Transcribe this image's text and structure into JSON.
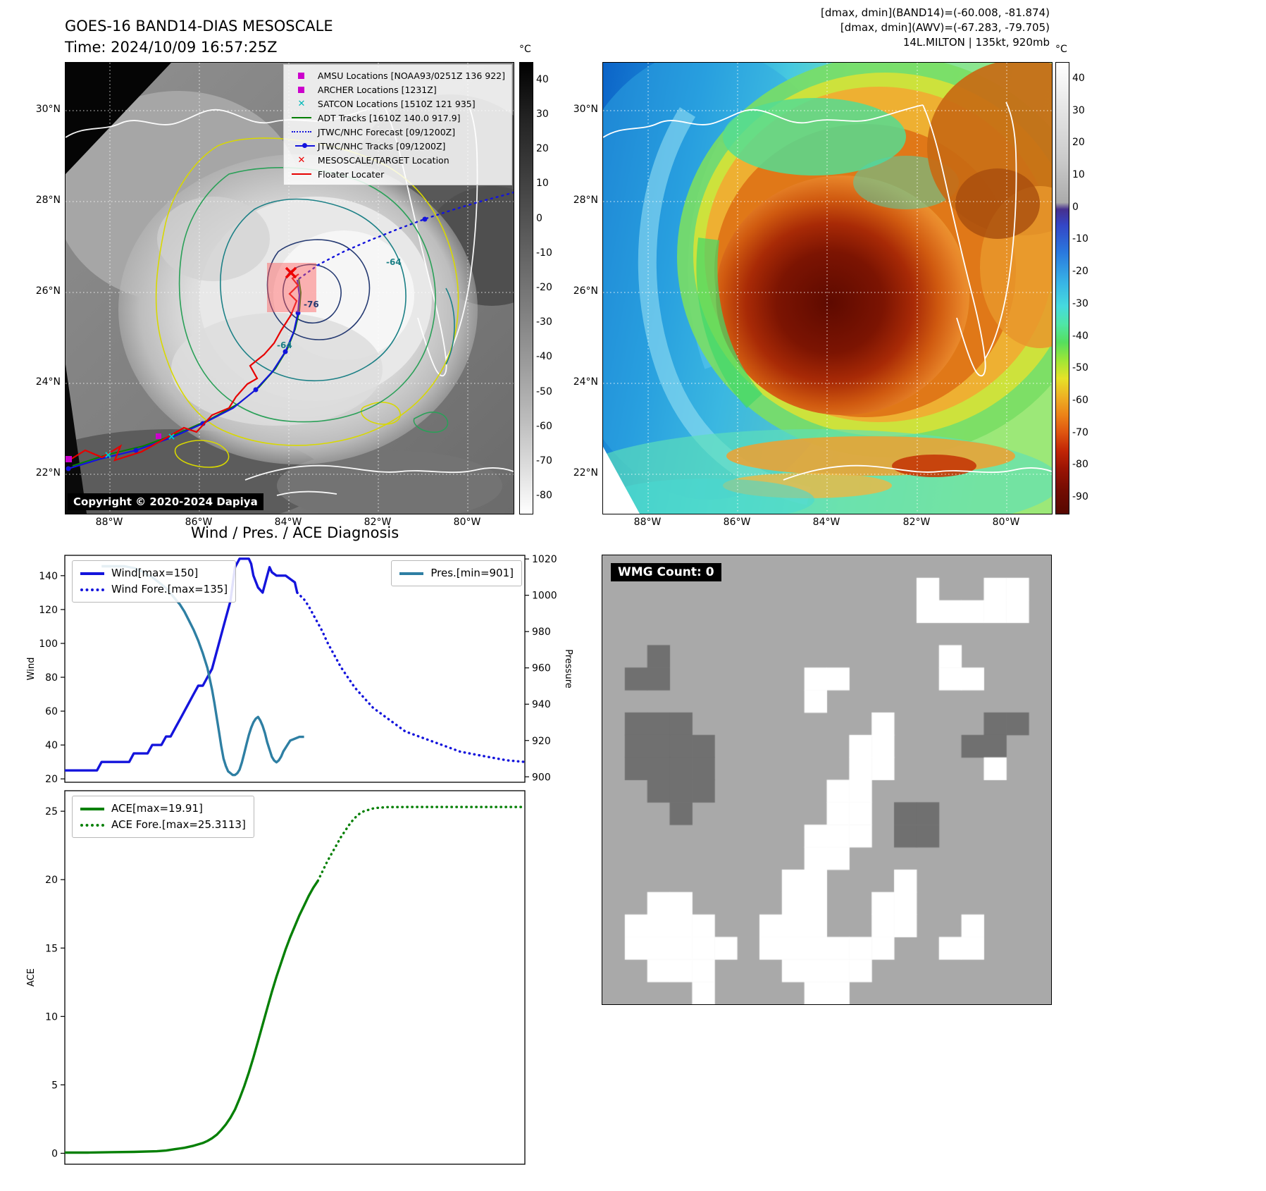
{
  "panel_band14": {
    "title_line1": "GOES-16 BAND14-DIAS MESOSCALE",
    "title_line2": "Time: 2024/10/09 16:57:25Z",
    "copyright": "Copyright © 2020-2024 Dapiya",
    "colorbar": {
      "unit": "°C",
      "ticks": [
        40,
        30,
        20,
        10,
        0,
        -10,
        -20,
        -30,
        -40,
        -50,
        -60,
        -70,
        -80
      ]
    },
    "lat_labels": [
      "30°N",
      "28°N",
      "26°N",
      "24°N",
      "22°N"
    ],
    "lon_labels": [
      "88°W",
      "86°W",
      "84°W",
      "82°W",
      "80°W"
    ],
    "contour_labels": [
      "-64",
      "-76",
      "-64"
    ],
    "legend": [
      {
        "label": "AMSU Locations [NOAA93/0251Z 136 922]",
        "marker": "square",
        "color": "#cc00cc"
      },
      {
        "label": "ARCHER Locations [1231Z]",
        "marker": "square",
        "color": "#cc00cc"
      },
      {
        "label": "SATCON Locations [1510Z 121 935]",
        "marker": "x",
        "color": "#00b8b8"
      },
      {
        "label": "ADT Tracks [1610Z 140.0 917.9]",
        "marker": "line",
        "color": "#068006"
      },
      {
        "label": "JTWC/NHC Forecast [09/1200Z]",
        "marker": "dotted",
        "color": "#1414dc"
      },
      {
        "label": "JTWC/NHC Tracks [09/1200Z]",
        "marker": "line-dot",
        "color": "#1414dc"
      },
      {
        "label": "MESOSCALE/TARGET Location",
        "marker": "x",
        "color": "#ee0000"
      },
      {
        "label": "Floater Locater",
        "marker": "line",
        "color": "#e60000"
      }
    ]
  },
  "panel_awv": {
    "annotations": [
      "[dmax, dmin](BAND14)=(-60.008, -81.874)",
      "[dmax, dmin](AWV)=(-67.283, -79.705)",
      "14L.MILTON | 135kt, 920mb"
    ],
    "colorbar": {
      "unit": "°C",
      "ticks": [
        40,
        30,
        20,
        10,
        0,
        -10,
        -20,
        -30,
        -40,
        -50,
        -60,
        -70,
        -80,
        -90
      ]
    },
    "lat_labels": [
      "30°N",
      "28°N",
      "26°N",
      "24°N",
      "22°N"
    ],
    "lon_labels": [
      "88°W",
      "86°W",
      "84°W",
      "82°W",
      "80°W"
    ]
  },
  "chart_data": [
    {
      "type": "line",
      "id": "wind_pres",
      "title": "Wind / Pres. / ACE Diagnosis",
      "ylabel": "Wind",
      "ylabel_right": "Pressure",
      "y_ticks": [
        20,
        40,
        60,
        80,
        100,
        120,
        140
      ],
      "y_range": [
        18,
        152
      ],
      "y_right_ticks": [
        900,
        920,
        940,
        960,
        980,
        1000,
        1020
      ],
      "y_right_range": [
        897,
        1022
      ],
      "x_range": [
        0,
        100
      ],
      "grid": false,
      "legend_left": [
        {
          "label": "Wind[max=150]",
          "style": "solid",
          "color": "#1414dc"
        },
        {
          "label": "Wind Fore.[max=135]",
          "style": "dotted",
          "color": "#1414dc"
        }
      ],
      "legend_right": [
        {
          "label": "Pres.[min=901]",
          "style": "solid",
          "color": "#2e7fa3"
        }
      ],
      "series": [
        {
          "name": "Wind",
          "axis": "left",
          "style": "solid",
          "color": "#1414dc",
          "points": [
            [
              0,
              25
            ],
            [
              3,
              25
            ],
            [
              5,
              25
            ],
            [
              7,
              25
            ],
            [
              8,
              30
            ],
            [
              10,
              30
            ],
            [
              12,
              30
            ],
            [
              14,
              30
            ],
            [
              15,
              35
            ],
            [
              17,
              35
            ],
            [
              18,
              35
            ],
            [
              19,
              40
            ],
            [
              21,
              40
            ],
            [
              22,
              45
            ],
            [
              23,
              45
            ],
            [
              24,
              50
            ],
            [
              25,
              55
            ],
            [
              26,
              60
            ],
            [
              27,
              65
            ],
            [
              28,
              70
            ],
            [
              29,
              75
            ],
            [
              30,
              75
            ],
            [
              31,
              80
            ],
            [
              32,
              85
            ],
            [
              33,
              95
            ],
            [
              34,
              105
            ],
            [
              35,
              115
            ],
            [
              36,
              125
            ],
            [
              36.5,
              135
            ],
            [
              37,
              145
            ],
            [
              38,
              150
            ],
            [
              39,
              150
            ],
            [
              40,
              150
            ],
            [
              40.5,
              147
            ],
            [
              41,
              140
            ],
            [
              42,
              133
            ],
            [
              43,
              130
            ],
            [
              44,
              140
            ],
            [
              44.5,
              145
            ],
            [
              45,
              142
            ],
            [
              46,
              140
            ],
            [
              47,
              140
            ],
            [
              48,
              140
            ],
            [
              49,
              138
            ],
            [
              50,
              136
            ],
            [
              50.5,
              130
            ]
          ]
        },
        {
          "name": "Wind Fore.",
          "axis": "left",
          "style": "dotted",
          "color": "#1414dc",
          "points": [
            [
              50.5,
              130
            ],
            [
              52,
              126
            ],
            [
              53,
              122
            ],
            [
              54,
              117
            ],
            [
              55,
              112
            ],
            [
              56,
              107
            ],
            [
              57,
              101
            ],
            [
              58,
              96
            ],
            [
              59,
              91
            ],
            [
              60,
              86
            ],
            [
              61,
              82
            ],
            [
              62,
              78
            ],
            [
              63,
              74
            ],
            [
              64,
              71
            ],
            [
              65,
              68
            ],
            [
              66,
              65
            ],
            [
              67,
              62
            ],
            [
              68,
              60
            ],
            [
              69,
              58
            ],
            [
              70,
              56
            ],
            [
              71,
              54
            ],
            [
              72,
              52
            ],
            [
              73,
              50
            ],
            [
              74,
              48
            ],
            [
              75,
              47
            ],
            [
              76,
              46
            ],
            [
              77,
              45
            ],
            [
              78,
              44
            ],
            [
              79,
              43
            ],
            [
              80,
              42
            ],
            [
              81,
              41
            ],
            [
              82,
              40
            ],
            [
              84,
              38
            ],
            [
              86,
              36
            ],
            [
              88,
              35
            ],
            [
              90,
              34
            ],
            [
              92,
              33
            ],
            [
              94,
              32
            ],
            [
              96,
              31
            ],
            [
              98,
              30.5
            ],
            [
              100,
              30
            ]
          ]
        },
        {
          "name": "Pres.",
          "axis": "right",
          "style": "solid",
          "color": "#2e7fa3",
          "points": [
            [
              8,
              1016
            ],
            [
              11,
              1016
            ],
            [
              13,
              1016
            ],
            [
              15,
              1015
            ],
            [
              16,
              1014
            ],
            [
              17,
              1013
            ],
            [
              18,
              1011
            ],
            [
              19,
              1010
            ],
            [
              20,
              1008
            ],
            [
              21,
              1006
            ],
            [
              22,
              1004
            ],
            [
              23,
              1001
            ],
            [
              24,
              998
            ],
            [
              25,
              995
            ],
            [
              26,
              991
            ],
            [
              27,
              986
            ],
            [
              28,
              981
            ],
            [
              29,
              975
            ],
            [
              30,
              968
            ],
            [
              31,
              960
            ],
            [
              31.5,
              954
            ],
            [
              32,
              948
            ],
            [
              32.5,
              941
            ],
            [
              33,
              933
            ],
            [
              33.5,
              925
            ],
            [
              34,
              917
            ],
            [
              34.5,
              910
            ],
            [
              35,
              906
            ],
            [
              35.5,
              903
            ],
            [
              36,
              902
            ],
            [
              36.5,
              901
            ],
            [
              37,
              901
            ],
            [
              37.5,
              902
            ],
            [
              38,
              904
            ],
            [
              38.5,
              908
            ],
            [
              39,
              913
            ],
            [
              39.5,
              918
            ],
            [
              40,
              923
            ],
            [
              40.5,
              927
            ],
            [
              41,
              930
            ],
            [
              41.5,
              932
            ],
            [
              42,
              933
            ],
            [
              42.5,
              931
            ],
            [
              43,
              928
            ],
            [
              43.5,
              924
            ],
            [
              44,
              919
            ],
            [
              44.5,
              915
            ],
            [
              45,
              911
            ],
            [
              45.5,
              909
            ],
            [
              46,
              908
            ],
            [
              46.5,
              909
            ],
            [
              47,
              911
            ],
            [
              47.5,
              914
            ],
            [
              48,
              916
            ],
            [
              48.5,
              918
            ],
            [
              49,
              920
            ],
            [
              50,
              921
            ],
            [
              51,
              922
            ],
            [
              52,
              922
            ]
          ]
        }
      ]
    },
    {
      "type": "line",
      "id": "ace",
      "ylabel": "ACE",
      "y_ticks": [
        0,
        5,
        10,
        15,
        20,
        25
      ],
      "y_range": [
        -0.8,
        26.5
      ],
      "x_range": [
        0,
        100
      ],
      "grid": false,
      "legend_left": [
        {
          "label": "ACE[max=19.91]",
          "style": "solid",
          "color": "#068006"
        },
        {
          "label": "ACE Fore.[max=25.3113]",
          "style": "dotted",
          "color": "#068006"
        }
      ],
      "series": [
        {
          "name": "ACE",
          "axis": "left",
          "style": "solid",
          "color": "#068006",
          "points": [
            [
              0,
              0.05
            ],
            [
              5,
              0.05
            ],
            [
              10,
              0.08
            ],
            [
              15,
              0.1
            ],
            [
              20,
              0.15
            ],
            [
              22,
              0.2
            ],
            [
              24,
              0.3
            ],
            [
              26,
              0.4
            ],
            [
              28,
              0.55
            ],
            [
              30,
              0.75
            ],
            [
              31,
              0.9
            ],
            [
              32,
              1.1
            ],
            [
              33,
              1.35
            ],
            [
              34,
              1.7
            ],
            [
              35,
              2.1
            ],
            [
              36,
              2.6
            ],
            [
              37,
              3.2
            ],
            [
              38,
              4
            ],
            [
              39,
              4.9
            ],
            [
              40,
              5.9
            ],
            [
              41,
              7
            ],
            [
              42,
              8.2
            ],
            [
              43,
              9.4
            ],
            [
              44,
              10.6
            ],
            [
              45,
              11.8
            ],
            [
              46,
              12.9
            ],
            [
              47,
              13.9
            ],
            [
              48,
              14.9
            ],
            [
              49,
              15.8
            ],
            [
              50,
              16.6
            ],
            [
              51,
              17.4
            ],
            [
              52,
              18.1
            ],
            [
              53,
              18.8
            ],
            [
              54,
              19.4
            ],
            [
              55,
              19.91
            ]
          ]
        },
        {
          "name": "ACE Fore.",
          "axis": "left",
          "style": "dotted",
          "color": "#068006",
          "points": [
            [
              55,
              19.91
            ],
            [
              56,
              20.6
            ],
            [
              57,
              21.3
            ],
            [
              58,
              21.9
            ],
            [
              59,
              22.5
            ],
            [
              60,
              23.1
            ],
            [
              61,
              23.6
            ],
            [
              62,
              24.1
            ],
            [
              63,
              24.5
            ],
            [
              64,
              24.8
            ],
            [
              65,
              25
            ],
            [
              66,
              25.1
            ],
            [
              67,
              25.2
            ],
            [
              68,
              25.25
            ],
            [
              70,
              25.3
            ],
            [
              75,
              25.31
            ],
            [
              80,
              25.31
            ],
            [
              85,
              25.31
            ],
            [
              90,
              25.31
            ],
            [
              95,
              25.31
            ],
            [
              100,
              25.31
            ]
          ]
        }
      ]
    }
  ],
  "wmg": {
    "label": "WMG Count: 0",
    "legend_colors": {
      "base": "#a9a9a9",
      "W": "#ffffff",
      "D": "#707070"
    },
    "grid": [
      "....................",
      "..............W..WW.",
      "..............WWWWW.",
      "....................",
      "..D............W....",
      ".DD......WW....WW...",
      ".........W..........",
      ".DDD........W....DD.",
      ".DDDD......WW...DD..",
      ".DDDD......WW....W..",
      "..DDD.....WW........",
      "...D......WW.DD.....",
      ".........WWW.DD.....",
      ".........WW.........",
      "........WW...W......",
      "..WW....WW..WW......",
      ".WWWW..WWW..WW..W...",
      ".WWWWW.WWWWWW..WW...",
      "..WWW...WWWW........",
      "....W....WW........."
    ]
  }
}
